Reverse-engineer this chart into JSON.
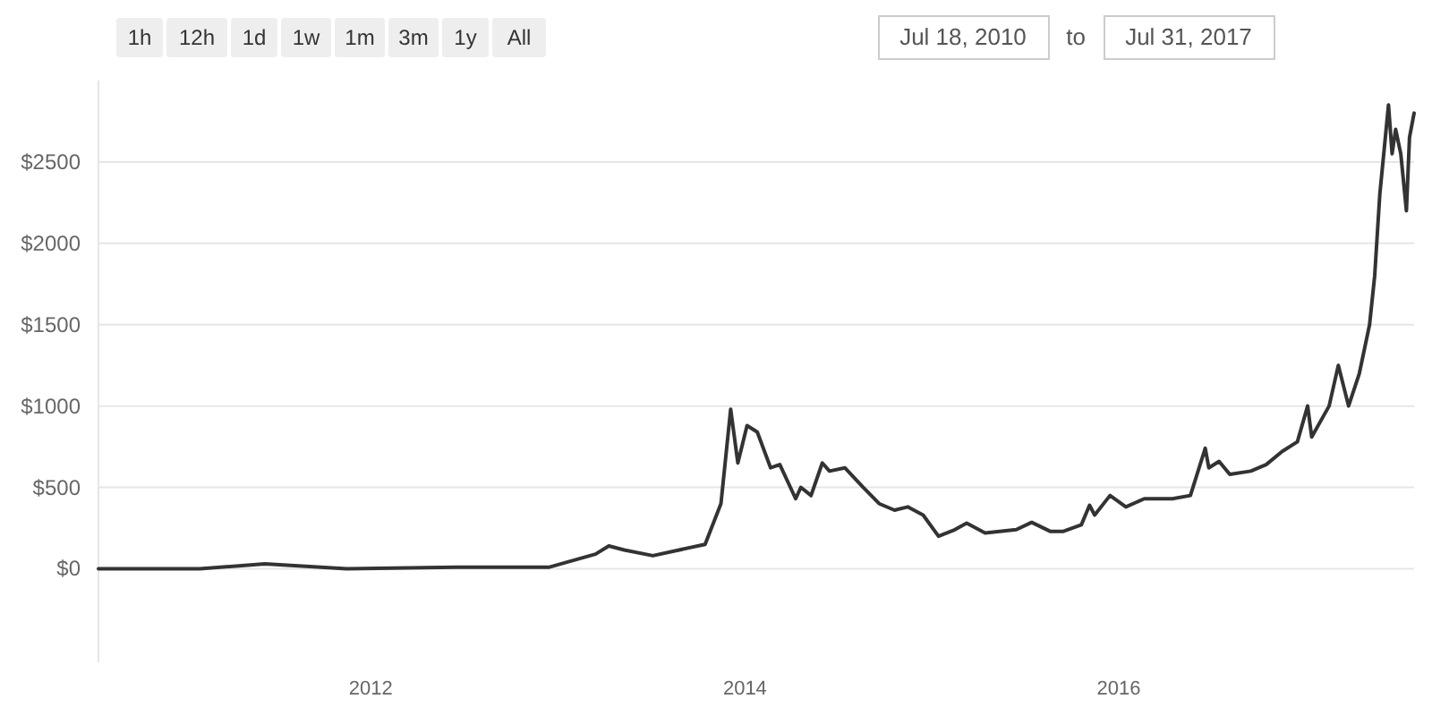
{
  "chart_data": {
    "type": "line",
    "annotations": [
      "1h",
      "12h",
      "1d",
      "1w",
      "1m",
      "3m",
      "1y",
      "All",
      "Jul 18, 2010",
      "to",
      "Jul 31, 2017"
    ],
    "xlim": [
      "2010-07-18",
      "2017-07-31"
    ],
    "xticks": [
      {
        "value": "2012",
        "label": "2012"
      },
      {
        "value": "2014",
        "label": "2014"
      },
      {
        "value": "2016",
        "label": "2016"
      }
    ],
    "ylim": [
      -575,
      3000
    ],
    "yticks": [
      {
        "value": 0,
        "label": "$0"
      },
      {
        "value": 500,
        "label": "$500"
      },
      {
        "value": 1000,
        "label": "$1000"
      },
      {
        "value": 1500,
        "label": "$1500"
      },
      {
        "value": 2000,
        "label": "$2000"
      },
      {
        "value": 2500,
        "label": "$2500"
      }
    ],
    "grid": "y",
    "marker": "none",
    "line_style": "solid",
    "series": [
      {
        "color": "#333333",
        "x": [
          "2010-07-18",
          "2011-02-01",
          "2011-06-08",
          "2011-11-15",
          "2012-06-15",
          "2012-12-15",
          "2013-03-15",
          "2013-04-10",
          "2013-05-10",
          "2013-07-05",
          "2013-10-15",
          "2013-11-15",
          "2013-12-04",
          "2013-12-18",
          "2014-01-05",
          "2014-01-25",
          "2014-02-20",
          "2014-03-10",
          "2014-04-10",
          "2014-04-20",
          "2014-05-10",
          "2014-06-01",
          "2014-06-15",
          "2014-07-15",
          "2014-08-20",
          "2014-09-20",
          "2014-10-20",
          "2014-11-15",
          "2014-12-15",
          "2015-01-14",
          "2015-02-15",
          "2015-03-10",
          "2015-04-15",
          "2015-06-15",
          "2015-07-15",
          "2015-08-20",
          "2015-09-15",
          "2015-10-20",
          "2015-11-05",
          "2015-11-15",
          "2015-12-15",
          "2016-01-15",
          "2016-02-20",
          "2016-04-15",
          "2016-05-20",
          "2016-06-18",
          "2016-06-25",
          "2016-07-15",
          "2016-08-05",
          "2016-09-15",
          "2016-10-15",
          "2016-11-15",
          "2016-12-15",
          "2017-01-04",
          "2017-01-12",
          "2017-02-15",
          "2017-03-05",
          "2017-03-25",
          "2017-04-15",
          "2017-05-05",
          "2017-05-15",
          "2017-05-25",
          "2017-06-11",
          "2017-06-18",
          "2017-06-25",
          "2017-07-05",
          "2017-07-16",
          "2017-07-22",
          "2017-07-31"
        ],
        "values": [
          0,
          0,
          30,
          0,
          10,
          10,
          90,
          140,
          115,
          80,
          150,
          400,
          980,
          650,
          880,
          840,
          620,
          640,
          430,
          500,
          450,
          650,
          600,
          620,
          500,
          400,
          360,
          380,
          330,
          200,
          240,
          280,
          220,
          240,
          285,
          230,
          230,
          270,
          390,
          330,
          450,
          380,
          430,
          430,
          450,
          740,
          620,
          660,
          580,
          600,
          640,
          720,
          780,
          1000,
          810,
          1000,
          1250,
          1000,
          1200,
          1500,
          1800,
          2300,
          2850,
          2550,
          2700,
          2550,
          2200,
          2650,
          2800
        ]
      }
    ]
  }
}
